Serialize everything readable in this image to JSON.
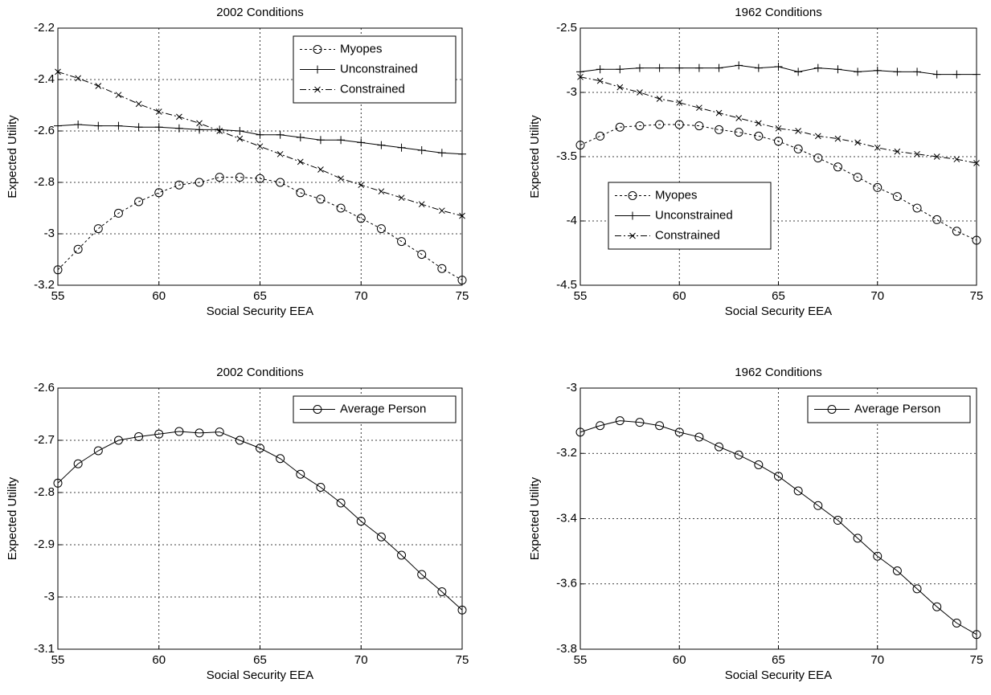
{
  "chart_data": [
    {
      "type": "line",
      "title": "2002 Conditions",
      "xlabel": "Social Security EEA",
      "ylabel": "Expected Utility",
      "x": [
        55,
        56,
        57,
        58,
        59,
        60,
        61,
        62,
        63,
        64,
        65,
        66,
        67,
        68,
        69,
        70,
        71,
        72,
        73,
        74,
        75
      ],
      "xlim": [
        55,
        75
      ],
      "xticks": [
        55,
        60,
        65,
        70,
        75
      ],
      "ylim": [
        -3.2,
        -2.2
      ],
      "yticks": [
        -2.2,
        -2.4,
        -2.6,
        -2.8,
        -3,
        -3.2
      ],
      "grid": true,
      "legend": "upper right",
      "series": [
        {
          "name": "Myopes",
          "color": "#000000",
          "linestyle": "dotted",
          "marker": "circle",
          "values": [
            -3.14,
            -3.06,
            -2.98,
            -2.92,
            -2.875,
            -2.84,
            -2.81,
            -2.8,
            -2.78,
            -2.78,
            -2.785,
            -2.8,
            -2.84,
            -2.865,
            -2.9,
            -2.94,
            -2.98,
            -3.03,
            -3.08,
            -3.135,
            -3.18
          ]
        },
        {
          "name": "Unconstrained",
          "color": "#000000",
          "linestyle": "solid",
          "marker": "plus",
          "values": [
            -2.58,
            -2.575,
            -2.58,
            -2.58,
            -2.585,
            -2.585,
            -2.59,
            -2.595,
            -2.595,
            -2.6,
            -2.615,
            -2.615,
            -2.625,
            -2.635,
            -2.635,
            -2.645,
            -2.655,
            -2.665,
            -2.675,
            -2.685,
            -2.69
          ]
        },
        {
          "name": "Constrained",
          "color": "#000000",
          "linestyle": "dashdot",
          "marker": "x",
          "values": [
            -2.37,
            -2.395,
            -2.425,
            -2.46,
            -2.495,
            -2.525,
            -2.545,
            -2.57,
            -2.6,
            -2.63,
            -2.66,
            -2.69,
            -2.72,
            -2.75,
            -2.785,
            -2.81,
            -2.835,
            -2.86,
            -2.885,
            -2.91,
            -2.93
          ]
        }
      ]
    },
    {
      "type": "line",
      "title": "1962 Conditions",
      "xlabel": "Social Security EEA",
      "ylabel": "Expected Utility",
      "x": [
        55,
        56,
        57,
        58,
        59,
        60,
        61,
        62,
        63,
        64,
        65,
        66,
        67,
        68,
        69,
        70,
        71,
        72,
        73,
        74,
        75
      ],
      "xlim": [
        55,
        75
      ],
      "xticks": [
        55,
        60,
        65,
        70,
        75
      ],
      "ylim": [
        -4.5,
        -2.5
      ],
      "yticks": [
        -2.5,
        -3,
        -3.5,
        -4,
        -4.5
      ],
      "grid": true,
      "legend": "lower left",
      "series": [
        {
          "name": "Myopes",
          "color": "#000000",
          "linestyle": "dotted",
          "marker": "circle",
          "values": [
            -3.41,
            -3.34,
            -3.27,
            -3.26,
            -3.25,
            -3.25,
            -3.26,
            -3.29,
            -3.31,
            -3.34,
            -3.38,
            -3.44,
            -3.51,
            -3.58,
            -3.66,
            -3.74,
            -3.81,
            -3.9,
            -3.99,
            -4.08,
            -4.15
          ]
        },
        {
          "name": "Unconstrained",
          "color": "#000000",
          "linestyle": "solid",
          "marker": "plus",
          "values": [
            -2.84,
            -2.82,
            -2.82,
            -2.81,
            -2.81,
            -2.81,
            -2.81,
            -2.81,
            -2.79,
            -2.81,
            -2.8,
            -2.84,
            -2.81,
            -2.82,
            -2.84,
            -2.83,
            -2.84,
            -2.84,
            -2.86,
            -2.86,
            -2.86
          ]
        },
        {
          "name": "Constrained",
          "color": "#000000",
          "linestyle": "dashdot",
          "marker": "x",
          "values": [
            -2.88,
            -2.91,
            -2.96,
            -3.0,
            -3.05,
            -3.08,
            -3.12,
            -3.16,
            -3.2,
            -3.24,
            -3.28,
            -3.3,
            -3.34,
            -3.36,
            -3.39,
            -3.43,
            -3.46,
            -3.48,
            -3.5,
            -3.52,
            -3.55
          ]
        }
      ]
    },
    {
      "type": "line",
      "title": "2002 Conditions",
      "xlabel": "Social Security EEA",
      "ylabel": "Expected Utility",
      "x": [
        55,
        56,
        57,
        58,
        59,
        60,
        61,
        62,
        63,
        64,
        65,
        66,
        67,
        68,
        69,
        70,
        71,
        72,
        73,
        74,
        75
      ],
      "xlim": [
        55,
        75
      ],
      "xticks": [
        55,
        60,
        65,
        70,
        75
      ],
      "ylim": [
        -3.1,
        -2.6
      ],
      "yticks": [
        -2.6,
        -2.7,
        -2.8,
        -2.9,
        -3,
        -3.1
      ],
      "grid": true,
      "legend": "upper right",
      "series": [
        {
          "name": "Average Person",
          "color": "#000000",
          "linestyle": "solid",
          "marker": "circle",
          "values": [
            -2.782,
            -2.745,
            -2.72,
            -2.7,
            -2.693,
            -2.688,
            -2.683,
            -2.686,
            -2.684,
            -2.7,
            -2.715,
            -2.735,
            -2.765,
            -2.79,
            -2.82,
            -2.855,
            -2.885,
            -2.92,
            -2.957,
            -2.99,
            -3.025
          ]
        }
      ]
    },
    {
      "type": "line",
      "title": "1962 Conditions",
      "xlabel": "Social Security EEA",
      "ylabel": "Expected Utility",
      "x": [
        55,
        56,
        57,
        58,
        59,
        60,
        61,
        62,
        63,
        64,
        65,
        66,
        67,
        68,
        69,
        70,
        71,
        72,
        73,
        74,
        75
      ],
      "xlim": [
        55,
        75
      ],
      "xticks": [
        55,
        60,
        65,
        70,
        75
      ],
      "ylim": [
        -3.8,
        -3
      ],
      "yticks": [
        -3,
        -3.2,
        -3.4,
        -3.6,
        -3.8
      ],
      "grid": true,
      "legend": "upper right",
      "series": [
        {
          "name": "Average Person",
          "color": "#000000",
          "linestyle": "solid",
          "marker": "circle",
          "values": [
            -3.135,
            -3.115,
            -3.1,
            -3.105,
            -3.115,
            -3.135,
            -3.15,
            -3.18,
            -3.205,
            -3.235,
            -3.27,
            -3.315,
            -3.36,
            -3.405,
            -3.46,
            -3.515,
            -3.56,
            -3.615,
            -3.67,
            -3.72,
            -3.755
          ]
        }
      ]
    }
  ]
}
